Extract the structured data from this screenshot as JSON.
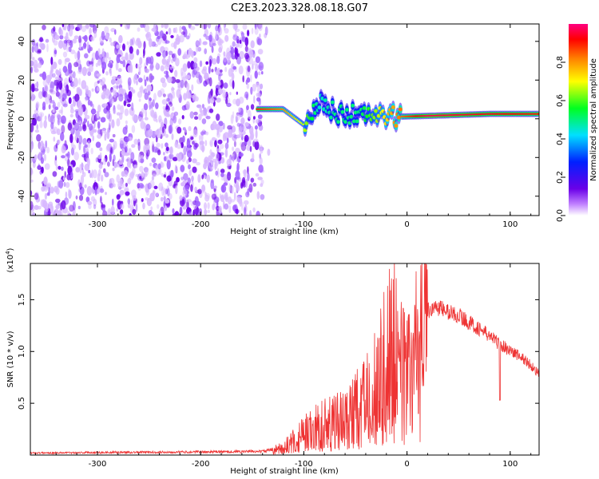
{
  "page": {
    "title": "C2E3.2023.328.08.18.G07"
  },
  "colors": {
    "snr_line": "#ee3333",
    "frame": "#000000",
    "colormap": [
      "#ffffff",
      "#6a00e8",
      "#0020ff",
      "#00e0ff",
      "#00ff20",
      "#ffff00",
      "#ff8000",
      "#ff0000",
      "#ff0080"
    ]
  },
  "chart_data": [
    {
      "type": "heatmap",
      "title": "",
      "xlabel": "Height of straight line (km)",
      "ylabel": "Frequency (Hz)",
      "xlim": [
        -365,
        128
      ],
      "ylim": [
        -50,
        49
      ],
      "xticks": [
        -300,
        -200,
        -100,
        0,
        100
      ],
      "yticks": [
        -40,
        -20,
        0,
        20,
        40
      ],
      "colorbar": {
        "label": "Normalized spectral amplitude",
        "range": [
          0,
          1
        ],
        "ticks": [
          "0.0",
          "0.2",
          "0.4",
          "0.6",
          "0.8"
        ],
        "tick_values": [
          0,
          0.2,
          0.4,
          0.6,
          0.8
        ]
      },
      "noise_region_x": [
        -365,
        -140
      ],
      "signal_track": [
        {
          "x": -145,
          "y": 5,
          "amp": 0.85
        },
        {
          "x": -120,
          "y": 5,
          "amp": 0.75
        },
        {
          "x": -100,
          "y": -3,
          "amp": 0.6
        },
        {
          "x": -85,
          "y": 8,
          "amp": 0.4
        },
        {
          "x": -70,
          "y": 3,
          "amp": 0.45
        },
        {
          "x": -45,
          "y": 2,
          "amp": 0.45
        },
        {
          "x": -15,
          "y": 1,
          "amp": 0.7
        },
        {
          "x": 20,
          "y": 1.5,
          "amp": 0.95
        },
        {
          "x": 80,
          "y": 2.5,
          "amp": 0.9
        },
        {
          "x": 128,
          "y": 2.5,
          "amp": 0.85
        }
      ]
    },
    {
      "type": "line",
      "title": "",
      "xlabel": "Height of straight line (km)",
      "ylabel": "SNR (10 * v/v)",
      "y_multiplier_label": "(x10",
      "y_multiplier_exp": "4",
      "xlim": [
        -365,
        128
      ],
      "ylim": [
        0,
        18500
      ],
      "xticks": [
        -300,
        -200,
        -100,
        0,
        100
      ],
      "yticks": [
        5000,
        10000,
        15000
      ],
      "ytick_labels": [
        "0.5",
        "1.0",
        "1.5"
      ],
      "series": [
        {
          "x": [
            -365,
            -300,
            -200,
            -140,
            -120,
            -100,
            -80,
            -60,
            -40,
            -20,
            -10,
            0,
            10,
            20,
            30,
            40,
            50,
            60,
            70,
            80,
            90,
            100,
            110,
            120,
            128
          ],
          "y": [
            200,
            250,
            300,
            350,
            700,
            2000,
            3000,
            3500,
            5000,
            9000,
            11000,
            9000,
            12000,
            14000,
            14300,
            13800,
            13500,
            12800,
            12200,
            11500,
            10700,
            10100,
            9500,
            8700,
            7800
          ]
        }
      ]
    }
  ],
  "ticks": {
    "x": [
      "-300",
      "-200",
      "-100",
      "0",
      "100"
    ],
    "heat_y": [
      "40",
      "20",
      "0",
      "-20",
      "-40"
    ]
  }
}
